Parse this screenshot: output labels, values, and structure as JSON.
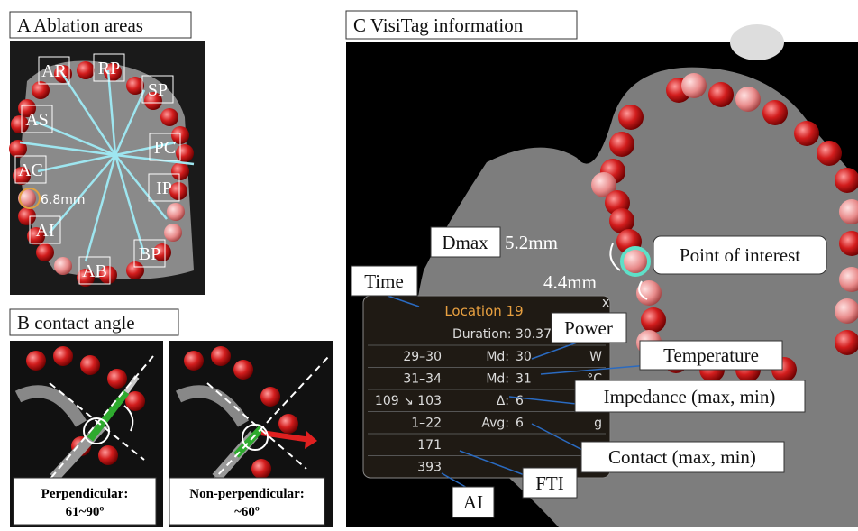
{
  "panel_a": {
    "title": "A  Ablation areas",
    "labels": [
      "AR",
      "RP",
      "SP",
      "AS",
      "PC",
      "AC",
      "IP",
      "AI",
      "BP",
      "AB"
    ],
    "measure": "6.8mm"
  },
  "panel_b": {
    "title": "B  contact angle",
    "captions": [
      [
        "Perpendicular:",
        "61~90º"
      ],
      [
        "Non-perpendicular:",
        "~60º"
      ]
    ]
  },
  "panel_c": {
    "title": "C  VisiTag information",
    "dmax": "Dmax",
    "dist1": "5.2mm",
    "dist2": "4.4mm",
    "point": "Point of interest",
    "callouts": {
      "time": "Time",
      "power": "Power",
      "temperature": "Temperature",
      "impedance": "Impedance (max, min)",
      "contact": "Contact (max, min)",
      "fti": "FTI",
      "ai": "AI"
    },
    "table": {
      "header": "Location 19",
      "close": "x",
      "duration": "Duration: 30.37",
      "rows": [
        [
          "29–30",
          "Md:",
          "30",
          "W"
        ],
        [
          "31–34",
          "Md:",
          "31",
          "°C"
        ],
        [
          "109 ↘ 103",
          "Δ:",
          "6",
          ""
        ],
        [
          "1–22",
          "Avg:",
          "6",
          "g"
        ],
        [
          "171",
          "",
          "",
          ""
        ],
        [
          "393",
          "",
          "",
          ""
        ]
      ]
    }
  }
}
